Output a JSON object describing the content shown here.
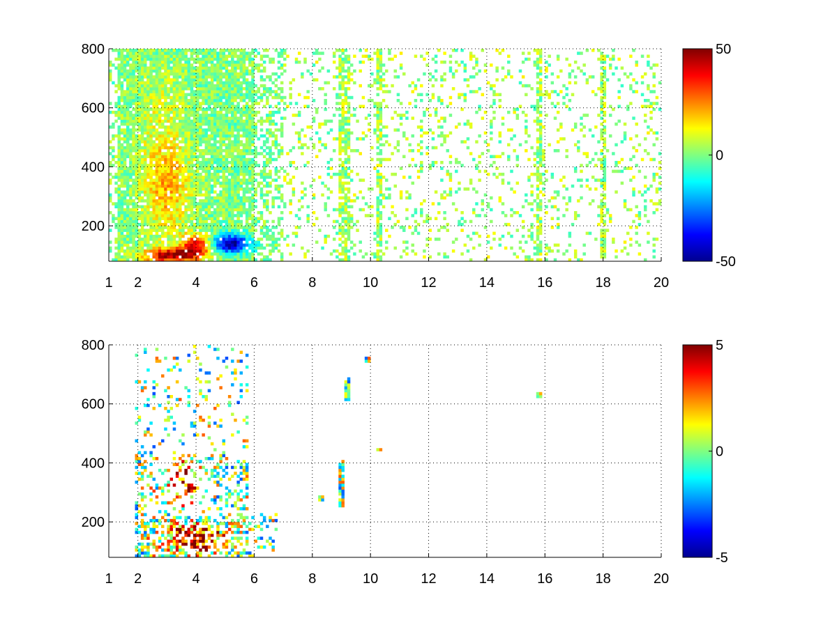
{
  "chart_data": [
    {
      "type": "heatmap",
      "title": "",
      "xlabel": "",
      "ylabel": "",
      "xlim": [
        1,
        20
      ],
      "ylim": [
        80,
        800
      ],
      "xticks": [
        1,
        2,
        4,
        6,
        8,
        10,
        12,
        14,
        16,
        18,
        20
      ],
      "yticks": [
        200,
        400,
        600,
        800
      ],
      "grid": true,
      "colorbar": {
        "min": -50,
        "max": 50,
        "ticks": [
          50,
          0,
          -50
        ],
        "colormap": "jet"
      },
      "notes": "sparse heatmap: dense noisy values between x=1 and x=7; strong positive band (~30-50) near y=90-150 for x=2.5-4.5; strong negative band (~-40 to -50) near y=120-160 for x=4.3-5.8; mostly near-zero (green) scattered values for x>7 with vertical streaks at about x=9, 9.2, 10.3, 15.8, 18"
    },
    {
      "type": "heatmap",
      "title": "",
      "xlabel": "",
      "ylabel": "",
      "xlim": [
        1,
        20
      ],
      "ylim": [
        80,
        800
      ],
      "xticks": [
        1,
        2,
        4,
        6,
        8,
        10,
        12,
        14,
        16,
        18,
        20
      ],
      "yticks": [
        200,
        400,
        600,
        800
      ],
      "grid": true,
      "colorbar": {
        "min": -5,
        "max": 5,
        "ticks": [
          5,
          0,
          -5
        ],
        "colormap": "jet"
      },
      "notes": "very sparse heatmap: values mostly between x=2 and x=6 (strong positive 3-5 clusters near y=100-200 and y=250-400); a few isolated marks near x=8.3, 9, 9.2, 9.9, 10.3 and 15.8"
    }
  ],
  "colors": {
    "colormap_low": "#00008f",
    "colormap_mid": "#80ff80",
    "colormap_high": "#800000",
    "grid": "#000000"
  }
}
